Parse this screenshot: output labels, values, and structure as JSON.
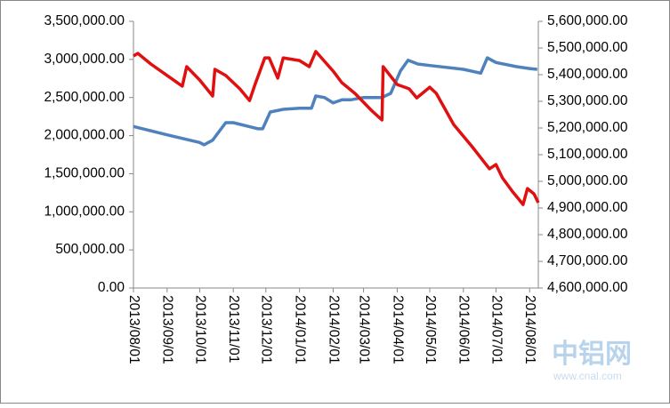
{
  "chart_data": {
    "type": "line",
    "watermark": {
      "logo": "中铝网",
      "url": "www.cnal.com"
    },
    "xlim": [
      "2013/08/01",
      "2014/08/09"
    ],
    "xticks": [
      "2013/08/01",
      "2013/09/01",
      "2013/10/01",
      "2013/11/01",
      "2013/12/01",
      "2014/01/01",
      "2014/02/01",
      "2014/03/01",
      "2014/04/01",
      "2014/05/01",
      "2014/06/01",
      "2014/07/01",
      "2014/08/01"
    ],
    "ylim": [
      0,
      3500000
    ],
    "yticks": [
      {
        "value": 0,
        "label": "0.00"
      },
      {
        "value": 500000,
        "label": "500,000.00"
      },
      {
        "value": 1000000,
        "label": "1,000,000.00"
      },
      {
        "value": 1500000,
        "label": "1,500,000.00"
      },
      {
        "value": 2000000,
        "label": "2,000,000.00"
      },
      {
        "value": 2500000,
        "label": "2,500,000.00"
      },
      {
        "value": 3000000,
        "label": "3,000,000.00"
      },
      {
        "value": 3500000,
        "label": "3,500,000.00"
      }
    ],
    "y2lim": [
      4600000,
      5600000
    ],
    "y2ticks": [
      {
        "value": 4600000,
        "label": "4,600,000.00"
      },
      {
        "value": 4700000,
        "label": "4,700,000.00"
      },
      {
        "value": 4800000,
        "label": "4,800,000.00"
      },
      {
        "value": 4900000,
        "label": "4,900,000.00"
      },
      {
        "value": 5000000,
        "label": "5,000,000.00"
      },
      {
        "value": 5100000,
        "label": "5,100,000.00"
      },
      {
        "value": 5200000,
        "label": "5,200,000.00"
      },
      {
        "value": 5300000,
        "label": "5,300,000.00"
      },
      {
        "value": 5400000,
        "label": "5,400,000.00"
      },
      {
        "value": 5500000,
        "label": "5,500,000.00"
      },
      {
        "value": 5600000,
        "label": "5,600,000.00"
      }
    ],
    "series": [
      {
        "color": "#4f81bd",
        "x": [
          "2013/08/01",
          "2013/09/01",
          "2013/10/01",
          "2013/10/05",
          "2013/10/13",
          "2013/10/25",
          "2013/11/01",
          "2013/11/24",
          "2013/11/28",
          "2013/12/05",
          "2013/12/17",
          "2014/01/01",
          "2014/01/12",
          "2014/01/16",
          "2014/01/24",
          "2014/02/01",
          "2014/02/09",
          "2014/02/17",
          "2014/03/01",
          "2014/03/18",
          "2014/03/26",
          "2014/04/04",
          "2014/04/11",
          "2014/04/20",
          "2014/05/01",
          "2014/06/01",
          "2014/06/17",
          "2014/06/23",
          "2014/07/01",
          "2014/07/20",
          "2014/08/01",
          "2014/08/08"
        ],
        "values": [
          2120000,
          2010000,
          1910000,
          1880000,
          1940000,
          2170000,
          2170000,
          2090000,
          2090000,
          2310000,
          2345000,
          2360000,
          2360000,
          2520000,
          2500000,
          2430000,
          2470000,
          2470000,
          2500000,
          2500000,
          2555000,
          2850000,
          2990000,
          2940000,
          2920000,
          2870000,
          2820000,
          3020000,
          2960000,
          2905000,
          2880000,
          2870000
        ]
      },
      {
        "color": "#e01010",
        "axis": "y2",
        "x": [
          "2013/08/01",
          "2013/08/05",
          "2013/08/17",
          "2013/09/01",
          "2013/09/15",
          "2013/09/19",
          "2013/10/01",
          "2013/10/13",
          "2013/10/15",
          "2013/10/25",
          "2013/11/07",
          "2013/11/16",
          "2013/11/21",
          "2013/11/30",
          "2013/12/04",
          "2013/12/12",
          "2013/12/17",
          "2014/01/01",
          "2014/01/10",
          "2014/01/16",
          "2014/02/01",
          "2014/02/09",
          "2014/02/21",
          "2014/03/09",
          "2014/03/18",
          "2014/03/19",
          "2014/04/01",
          "2014/04/12",
          "2014/04/19",
          "2014/05/01",
          "2014/05/07",
          "2014/05/23",
          "2014/06/09",
          "2014/06/25",
          "2014/07/01",
          "2014/07/07",
          "2014/07/16",
          "2014/07/26",
          "2014/07/30",
          "2014/08/05",
          "2014/08/09"
        ],
        "values": [
          5470000,
          5480000,
          5440000,
          5397000,
          5357000,
          5430000,
          5380000,
          5320000,
          5420000,
          5397000,
          5347000,
          5303000,
          5363000,
          5463000,
          5463000,
          5387000,
          5463000,
          5453000,
          5430000,
          5487000,
          5413000,
          5370000,
          5330000,
          5263000,
          5230000,
          5430000,
          5363000,
          5347000,
          5313000,
          5353000,
          5330000,
          5213000,
          5130000,
          5047000,
          5063000,
          5013000,
          4963000,
          4913000,
          4973000,
          4953000,
          4920000
        ]
      }
    ]
  }
}
